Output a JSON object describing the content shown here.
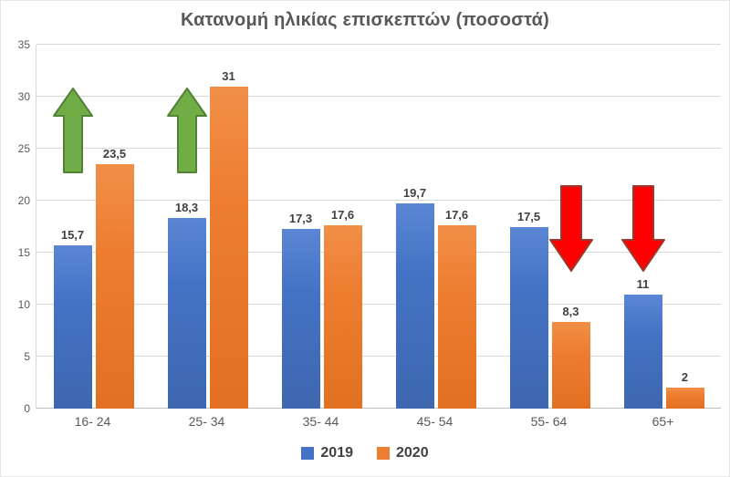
{
  "chart_data": {
    "type": "bar",
    "title": "Κατανομή ηλικίας επισκεπτών (ποσοστά)",
    "categories": [
      "16- 24",
      "25- 34",
      "35- 44",
      "45- 54",
      "55- 64",
      "65+"
    ],
    "series": [
      {
        "name": "2019",
        "color": "#4472C4",
        "values": [
          15.7,
          18.3,
          17.3,
          19.7,
          17.5,
          11
        ],
        "labels": [
          "15,7",
          "18,3",
          "17,3",
          "19,7",
          "17,5",
          "11"
        ]
      },
      {
        "name": "2020",
        "color": "#ED7D31",
        "values": [
          23.5,
          31,
          17.6,
          17.6,
          8.3,
          2
        ],
        "labels": [
          "23,5",
          "31",
          "17,6",
          "17,6",
          "8,3",
          "2"
        ]
      }
    ],
    "xlabel": "",
    "ylabel": "",
    "ylim": [
      0,
      35
    ],
    "yticks": [
      0,
      5,
      10,
      15,
      20,
      25,
      30,
      35
    ],
    "grid": true,
    "legend_position": "bottom",
    "annotations": [
      {
        "type": "arrow-up",
        "category_index": 0,
        "series_index": 0,
        "fill": "#70AD47",
        "border": "#538135"
      },
      {
        "type": "arrow-up",
        "category_index": 1,
        "series_index": 0,
        "fill": "#70AD47",
        "border": "#538135"
      },
      {
        "type": "arrow-down",
        "category_index": 4,
        "series_index": 1,
        "fill": "#FF0000",
        "border": "#963C2F"
      },
      {
        "type": "arrow-down",
        "category_index": 5,
        "series_index": 0,
        "fill": "#FF0000",
        "border": "#963C2F"
      }
    ]
  }
}
